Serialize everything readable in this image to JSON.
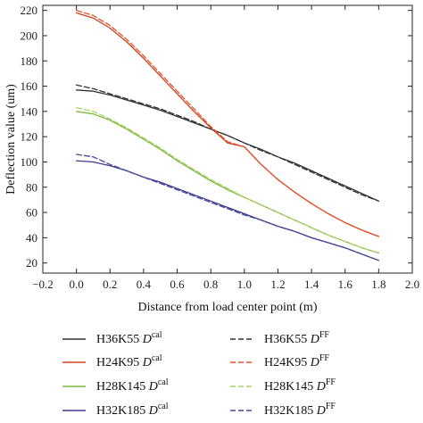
{
  "chart_data": {
    "type": "line",
    "xlabel": "Distance from load center point (m)",
    "ylabel": "Deflection value (um)",
    "xlim": [
      -0.2,
      2.0
    ],
    "ylim": [
      12,
      224
    ],
    "x_ticks": [
      "−0.2",
      "0.0",
      "0.2",
      "0.4",
      "0.6",
      "0.8",
      "1.0",
      "1.2",
      "1.4",
      "1.6",
      "1.8",
      "2.0"
    ],
    "x_tick_values": [
      -0.2,
      0.0,
      0.2,
      0.4,
      0.6,
      0.8,
      1.0,
      1.2,
      1.4,
      1.6,
      1.8,
      2.0
    ],
    "y_ticks": [
      "20",
      "40",
      "60",
      "80",
      "100",
      "120",
      "140",
      "160",
      "180",
      "200",
      "220"
    ],
    "y_tick_values": [
      20,
      40,
      60,
      80,
      100,
      120,
      140,
      160,
      180,
      200,
      220
    ],
    "grid": false,
    "legend_position": "bottom",
    "x": [
      0.0,
      0.1,
      0.2,
      0.3,
      0.4,
      0.5,
      0.6,
      0.7,
      0.8,
      0.9,
      1.0,
      1.1,
      1.2,
      1.3,
      1.4,
      1.5,
      1.6,
      1.7,
      1.8
    ],
    "series": [
      {
        "name": "H36K55",
        "dist": "D",
        "sup": "cal",
        "style": "solid",
        "color": "#333333",
        "values": [
          157,
          156,
          153,
          149,
          145,
          141,
          136,
          131,
          126,
          121,
          115,
          110,
          104,
          99,
          93,
          87,
          81,
          75,
          69
        ]
      },
      {
        "name": "H24K95",
        "dist": "D",
        "sup": "cal",
        "style": "solid",
        "color": "#d2401e",
        "values": [
          218,
          214,
          206,
          195,
          182,
          168,
          154,
          140,
          127,
          115,
          112,
          98,
          86,
          76,
          67,
          59,
          52,
          46,
          41
        ]
      },
      {
        "name": "H28K145",
        "dist": "D",
        "sup": "cal",
        "style": "solid",
        "color": "#7ab839",
        "values": [
          140,
          138,
          133,
          126,
          118,
          110,
          101,
          93,
          85,
          78,
          72,
          66,
          60,
          54,
          48,
          42,
          37,
          32,
          28
        ]
      },
      {
        "name": "H32K185",
        "dist": "D",
        "sup": "cal",
        "style": "solid",
        "color": "#3a3b8e",
        "values": [
          101,
          100,
          97,
          93,
          88,
          84,
          79,
          74,
          69,
          64,
          59,
          54,
          49,
          45,
          40,
          36,
          32,
          27,
          22
        ]
      },
      {
        "name": "H36K55",
        "dist": "D",
        "sup": "FF",
        "style": "dashed",
        "color": "#333333",
        "values": [
          161,
          158,
          154,
          150,
          146,
          142,
          137,
          132,
          126,
          121,
          115,
          109,
          104,
          98,
          92,
          86,
          80,
          74,
          69
        ]
      },
      {
        "name": "H24K95",
        "dist": "D",
        "sup": "FF",
        "style": "dashed",
        "color": "#e8512a",
        "values": [
          220,
          216,
          208,
          197,
          184,
          170,
          156,
          142,
          128,
          116,
          112,
          98,
          86,
          76,
          67,
          59,
          52,
          46,
          41
        ]
      },
      {
        "name": "H28K145",
        "dist": "D",
        "sup": "FF",
        "style": "dashed",
        "color": "#a8d26a",
        "values": [
          143,
          140,
          134,
          127,
          119,
          111,
          102,
          94,
          86,
          79,
          72,
          66,
          60,
          54,
          48,
          42,
          37,
          32,
          28
        ]
      },
      {
        "name": "H32K185",
        "dist": "D",
        "sup": "FF",
        "style": "dashed",
        "color": "#44479a",
        "values": [
          106,
          104,
          98,
          93,
          88,
          83,
          78,
          73,
          68,
          63,
          58,
          54,
          49,
          45,
          40,
          36,
          32,
          27,
          22
        ]
      }
    ]
  }
}
